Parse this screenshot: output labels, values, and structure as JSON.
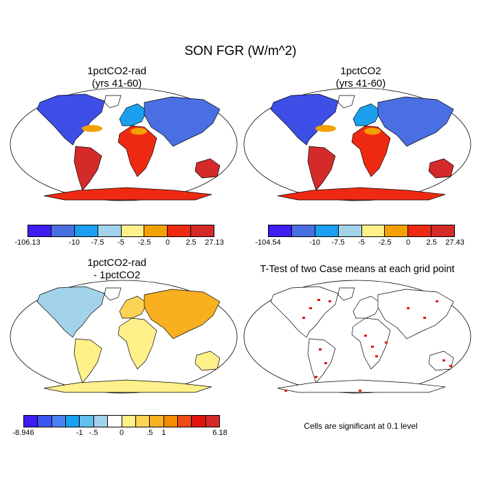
{
  "main_title": "SON FGR (W/m^2)",
  "panels": [
    {
      "title": "1pctCO2-rad\n(yrs 41-60)",
      "colorbar": {
        "colors": [
          "#3d1df2",
          "#4a6fe3",
          "#1aa0ee",
          "#a3d3ea",
          "#fff08a",
          "#f2a100",
          "#ef2a12",
          "#d42a2a"
        ],
        "labels": [
          "-106.13",
          "-10",
          "-7.5",
          "-5",
          "-2.5",
          "0",
          "2.5",
          "27.13"
        ]
      }
    },
    {
      "title": "1pctCO2\n(yrs 41-60)",
      "colorbar": {
        "colors": [
          "#3d1df2",
          "#4a6fe3",
          "#1aa0ee",
          "#a3d3ea",
          "#fff08a",
          "#f2a100",
          "#ef2a12",
          "#d42a2a"
        ],
        "labels": [
          "-104.54",
          "-10",
          "-7.5",
          "-5",
          "-2.5",
          "0",
          "2.5",
          "27.43"
        ]
      }
    },
    {
      "title": "1pctCO2-rad\n- 1pctCO2",
      "colorbar": {
        "colors": [
          "#3d1df2",
          "#3a55f0",
          "#4a80f3",
          "#1aa0ee",
          "#62bfee",
          "#a3d3ea",
          "#ffffff",
          "#fff08a",
          "#fcd455",
          "#f8b020",
          "#f28c00",
          "#ef4a12",
          "#e0140e",
          "#d42a2a"
        ],
        "labels": [
          "-8.946",
          "-1",
          "-.5",
          "0",
          ".5",
          "1",
          "6.18"
        ]
      }
    },
    {
      "title": "T-Test of two Case means at each grid point"
    }
  ],
  "footnote": "Cells are significant at 0.1 level"
}
